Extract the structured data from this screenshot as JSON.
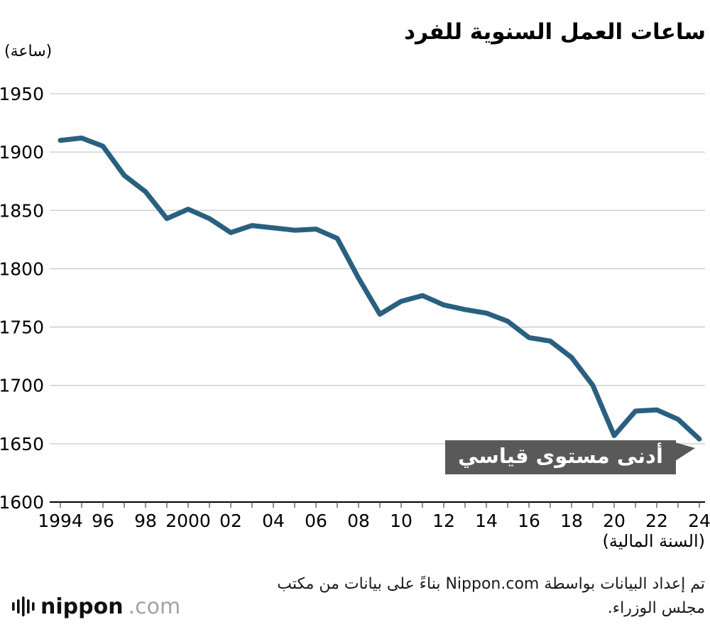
{
  "title": "ساعات العمل السنوية للفرد",
  "unit_label": "(ساعة)",
  "x_axis_label": "(السنة المالية)",
  "annotation": {
    "label": "أدنى مستوى قياسي"
  },
  "footer": {
    "line1": "تم إعداد البيانات بواسطة Nippon.com بناءً على بيانات من مكتب",
    "line2": "مجلس الوزراء."
  },
  "logo": {
    "name": "nippon",
    "tld": ".com"
  },
  "colors": {
    "line": "#2a607f",
    "grid": "#c9c9c9",
    "axis": "#000000",
    "annotation_bg": "#595959"
  },
  "chart_data": {
    "type": "line",
    "title": "ساعات العمل السنوية للفرد",
    "xlabel": "(السنة المالية)",
    "ylabel": "(ساعة)",
    "x": [
      1994,
      1995,
      1996,
      1997,
      1998,
      1999,
      2000,
      2001,
      2002,
      2003,
      2004,
      2005,
      2006,
      2007,
      2008,
      2009,
      2010,
      2011,
      2012,
      2013,
      2014,
      2015,
      2016,
      2017,
      2018,
      2019,
      2020,
      2021,
      2022,
      2023,
      2024
    ],
    "values": [
      1910,
      1912,
      1905,
      1880,
      1866,
      1843,
      1851,
      1843,
      1831,
      1837,
      1835,
      1833,
      1834,
      1826,
      1792,
      1761,
      1772,
      1777,
      1769,
      1765,
      1762,
      1755,
      1741,
      1738,
      1724,
      1700,
      1657,
      1678,
      1679,
      1671,
      1654
    ],
    "ylim": [
      1600,
      1950
    ],
    "y_ticks": [
      1950,
      1900,
      1850,
      1800,
      1750,
      1700,
      1650,
      1600
    ],
    "x_ticks": [
      {
        "year": 1994,
        "label": "1994"
      },
      {
        "year": 1996,
        "label": "96"
      },
      {
        "year": 1998,
        "label": "98"
      },
      {
        "year": 2000,
        "label": "2000"
      },
      {
        "year": 2002,
        "label": "02"
      },
      {
        "year": 2004,
        "label": "04"
      },
      {
        "year": 2006,
        "label": "06"
      },
      {
        "year": 2008,
        "label": "08"
      },
      {
        "year": 2010,
        "label": "10"
      },
      {
        "year": 2012,
        "label": "12"
      },
      {
        "year": 2014,
        "label": "14"
      },
      {
        "year": 2016,
        "label": "16"
      },
      {
        "year": 2018,
        "label": "18"
      },
      {
        "year": 2020,
        "label": "20"
      },
      {
        "year": 2022,
        "label": "22"
      },
      {
        "year": 2024,
        "label": "24"
      }
    ],
    "grid": true,
    "legend": "none",
    "line_color": "#2a607f",
    "annotation": {
      "text": "أدنى مستوى قياسي",
      "points_to_year": 2024,
      "points_to_value": 1654
    }
  }
}
